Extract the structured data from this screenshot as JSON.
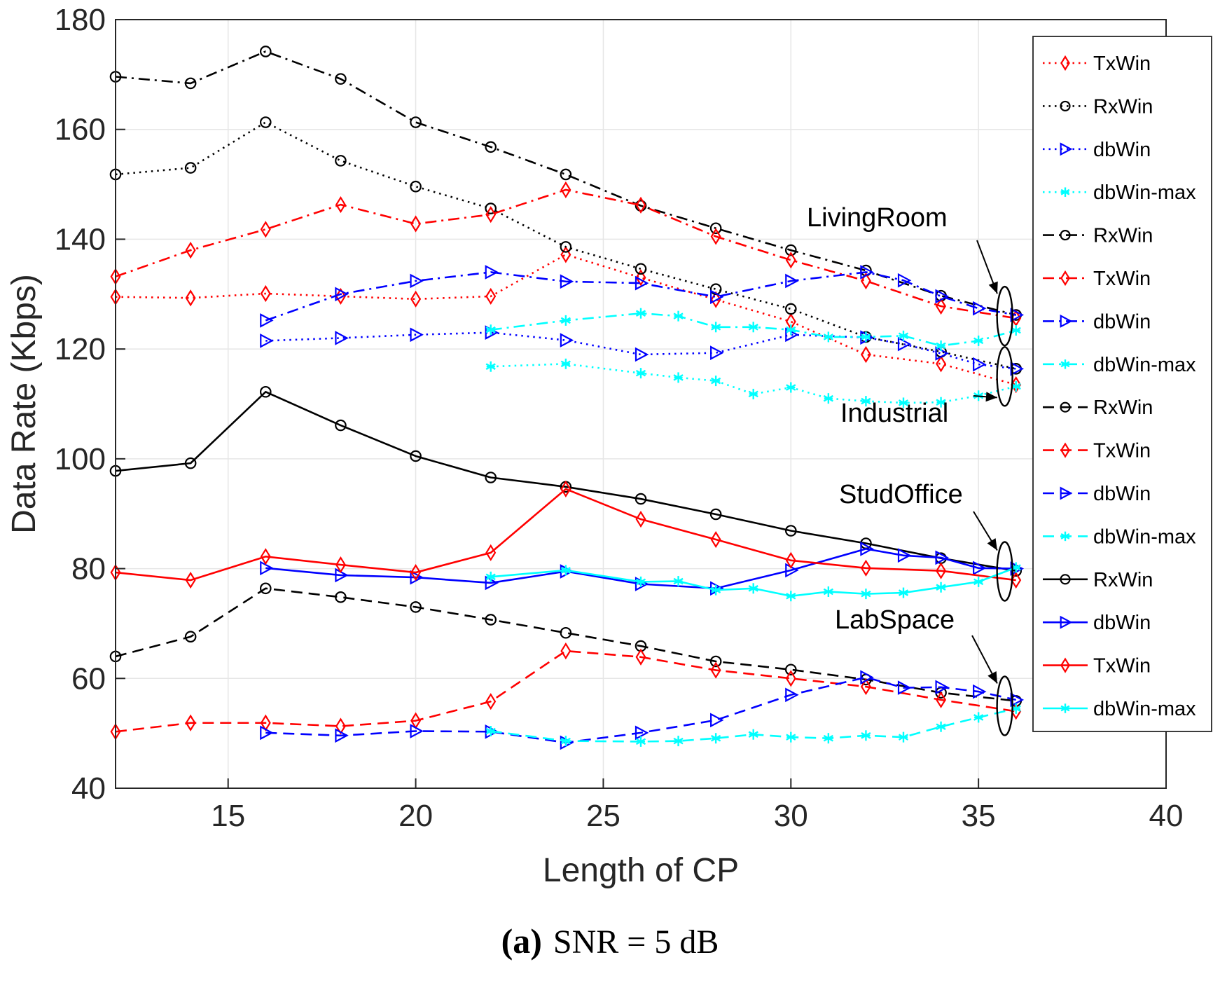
{
  "chart_data": {
    "type": "line",
    "xlabel": "Length of CP",
    "ylabel": "Data Rate (Kbps)",
    "xlim": [
      12,
      40
    ],
    "ylim": [
      40,
      180
    ],
    "xticks": [
      15,
      20,
      25,
      30,
      35,
      40
    ],
    "yticks": [
      40,
      60,
      80,
      100,
      120,
      140,
      160,
      180
    ],
    "grid": true,
    "legend_position": "right",
    "caption": {
      "label": "(a)",
      "text": "SNR = 5 dB"
    },
    "annotations": [
      {
        "text": "LivingRoom",
        "x": 36,
        "y": 126
      },
      {
        "text": "Industrial",
        "x": 36,
        "y": 115
      },
      {
        "text": "StudOffice",
        "x": 36,
        "y": 80
      },
      {
        "text": "LabSpace",
        "x": 36,
        "y": 55
      }
    ],
    "series": [
      {
        "name": "TxWin",
        "group": "Industrial",
        "color": "#ff0000",
        "style": "dotted",
        "marker": "diamond",
        "x": [
          12,
          14,
          16,
          18,
          20,
          22,
          24,
          26,
          28,
          30,
          32,
          34,
          36
        ],
        "y": [
          129.5,
          129.3,
          130.1,
          129.6,
          129.1,
          129.6,
          137.2,
          133.0,
          129.0,
          125.0,
          119.0,
          117.3,
          113.5
        ]
      },
      {
        "name": "RxWin",
        "group": "Industrial",
        "color": "#000000",
        "style": "dotted",
        "marker": "circle",
        "x": [
          12,
          14,
          16,
          18,
          20,
          22,
          24,
          26,
          28,
          30,
          32,
          34,
          36
        ],
        "y": [
          151.8,
          153.0,
          161.3,
          154.3,
          149.6,
          145.6,
          138.6,
          134.6,
          130.9,
          127.3,
          122.2,
          119.5,
          116.4
        ]
      },
      {
        "name": "dbWin",
        "group": "Industrial",
        "color": "#0000ff",
        "style": "dotted",
        "marker": "triangle-right",
        "x": [
          16,
          18,
          20,
          22,
          24,
          26,
          28,
          30,
          32,
          33,
          34,
          35,
          36
        ],
        "y": [
          121.5,
          122.0,
          122.6,
          123.0,
          121.6,
          119.0,
          119.3,
          122.6,
          122.1,
          120.9,
          119.2,
          117.2,
          116.4
        ]
      },
      {
        "name": "dbWin-max",
        "group": "Industrial",
        "color": "#00ffff",
        "style": "dotted",
        "marker": "asterisk",
        "x": [
          22,
          24,
          26,
          27,
          28,
          29,
          30,
          31,
          32,
          33,
          34,
          35,
          36
        ],
        "y": [
          116.8,
          117.3,
          115.6,
          114.8,
          114.2,
          111.8,
          113.0,
          111.0,
          110.5,
          110.2,
          110.3,
          111.5,
          113.2
        ]
      },
      {
        "name": "RxWin",
        "group": "LivingRoom",
        "color": "#000000",
        "style": "dashdot",
        "marker": "circle",
        "x": [
          12,
          14,
          16,
          18,
          20,
          22,
          24,
          26,
          28,
          30,
          32,
          34,
          36
        ],
        "y": [
          169.6,
          168.4,
          174.2,
          169.2,
          161.3,
          156.8,
          151.8,
          146.1,
          142.0,
          138.0,
          134.3,
          129.7,
          126.2
        ]
      },
      {
        "name": "TxWin",
        "group": "LivingRoom",
        "color": "#ff0000",
        "style": "dashdot",
        "marker": "diamond",
        "x": [
          12,
          14,
          16,
          18,
          20,
          22,
          24,
          26,
          28,
          30,
          32,
          34,
          36
        ],
        "y": [
          133.2,
          138.0,
          141.8,
          146.3,
          142.8,
          144.5,
          149.0,
          146.2,
          140.5,
          136.2,
          132.4,
          127.8,
          125.6
        ]
      },
      {
        "name": "dbWin",
        "group": "LivingRoom",
        "color": "#0000ff",
        "style": "dashdot",
        "marker": "triangle-right",
        "x": [
          16,
          18,
          20,
          22,
          24,
          26,
          28,
          30,
          32,
          33,
          34,
          35,
          36
        ],
        "y": [
          125.2,
          130.0,
          132.4,
          134.0,
          132.3,
          132.0,
          129.5,
          132.4,
          134.0,
          132.5,
          129.6,
          127.4,
          126.2
        ]
      },
      {
        "name": "dbWin-max",
        "group": "LivingRoom",
        "color": "#00ffff",
        "style": "dashdot",
        "marker": "asterisk",
        "x": [
          22,
          24,
          26,
          27,
          28,
          29,
          30,
          31,
          32,
          33,
          34,
          35,
          36
        ],
        "y": [
          123.5,
          125.2,
          126.5,
          126.0,
          124.0,
          124.0,
          123.5,
          122.2,
          122.2,
          122.4,
          120.6,
          121.5,
          123.4
        ]
      },
      {
        "name": "RxWin",
        "group": "LabSpace",
        "color": "#000000",
        "style": "dashed",
        "marker": "circle",
        "x": [
          12,
          14,
          16,
          18,
          20,
          22,
          24,
          26,
          28,
          30,
          32,
          34,
          36
        ],
        "y": [
          64.0,
          67.6,
          76.4,
          74.8,
          73.0,
          70.7,
          68.3,
          65.9,
          63.1,
          61.6,
          59.8,
          57.4,
          55.9
        ]
      },
      {
        "name": "TxWin",
        "group": "LabSpace",
        "color": "#ff0000",
        "style": "dashed",
        "marker": "diamond",
        "x": [
          12,
          14,
          16,
          18,
          20,
          22,
          24,
          26,
          28,
          30,
          32,
          34,
          36
        ],
        "y": [
          50.3,
          51.9,
          51.9,
          51.3,
          52.3,
          55.8,
          65.0,
          63.9,
          61.5,
          60.0,
          58.5,
          56.1,
          54.0
        ]
      },
      {
        "name": "dbWin",
        "group": "LabSpace",
        "color": "#0000ff",
        "style": "dashed",
        "marker": "triangle-right",
        "x": [
          16,
          18,
          20,
          22,
          24,
          26,
          28,
          30,
          32,
          33,
          34,
          35,
          36
        ],
        "y": [
          50.1,
          49.6,
          50.4,
          50.3,
          48.3,
          50.1,
          52.4,
          57.0,
          60.2,
          58.3,
          58.4,
          57.6,
          56.1
        ]
      },
      {
        "name": "dbWin-max",
        "group": "LabSpace",
        "color": "#00ffff",
        "style": "dashed",
        "marker": "asterisk",
        "x": [
          22,
          24,
          26,
          27,
          28,
          29,
          30,
          31,
          32,
          33,
          34,
          35,
          36
        ],
        "y": [
          50.4,
          48.6,
          48.5,
          48.6,
          49.1,
          49.8,
          49.3,
          49.1,
          49.6,
          49.3,
          51.2,
          52.9,
          54.5
        ]
      },
      {
        "name": "RxWin",
        "group": "StudOffice",
        "color": "#000000",
        "style": "solid",
        "marker": "circle",
        "x": [
          12,
          14,
          16,
          18,
          20,
          22,
          24,
          26,
          28,
          30,
          32,
          34,
          36
        ],
        "y": [
          97.8,
          99.2,
          112.2,
          106.1,
          100.5,
          96.6,
          94.9,
          92.7,
          89.9,
          86.9,
          84.6,
          81.9,
          79.6
        ]
      },
      {
        "name": "dbWin",
        "group": "StudOffice",
        "color": "#0000ff",
        "style": "solid",
        "marker": "triangle-right",
        "x": [
          16,
          18,
          20,
          22,
          24,
          26,
          28,
          30,
          32,
          33,
          34,
          35,
          36
        ],
        "y": [
          80.1,
          78.8,
          78.4,
          77.4,
          79.5,
          77.2,
          76.4,
          79.7,
          83.6,
          82.4,
          82.0,
          80.1,
          80.0
        ]
      },
      {
        "name": "TxWin",
        "group": "StudOffice",
        "color": "#ff0000",
        "style": "solid",
        "marker": "diamond",
        "x": [
          12,
          14,
          16,
          18,
          20,
          22,
          24,
          26,
          28,
          30,
          32,
          34,
          36
        ],
        "y": [
          79.3,
          77.9,
          82.2,
          80.7,
          79.3,
          82.9,
          94.5,
          89.0,
          85.3,
          81.5,
          80.1,
          79.6,
          77.9
        ]
      },
      {
        "name": "dbWin-max",
        "group": "StudOffice",
        "color": "#00ffff",
        "style": "solid",
        "marker": "asterisk",
        "x": [
          22,
          24,
          26,
          27,
          28,
          29,
          30,
          31,
          32,
          33,
          34,
          35,
          36
        ],
        "y": [
          78.5,
          79.7,
          77.6,
          77.7,
          76.1,
          76.4,
          75.0,
          75.8,
          75.4,
          75.6,
          76.6,
          77.6,
          80.2
        ]
      }
    ]
  }
}
